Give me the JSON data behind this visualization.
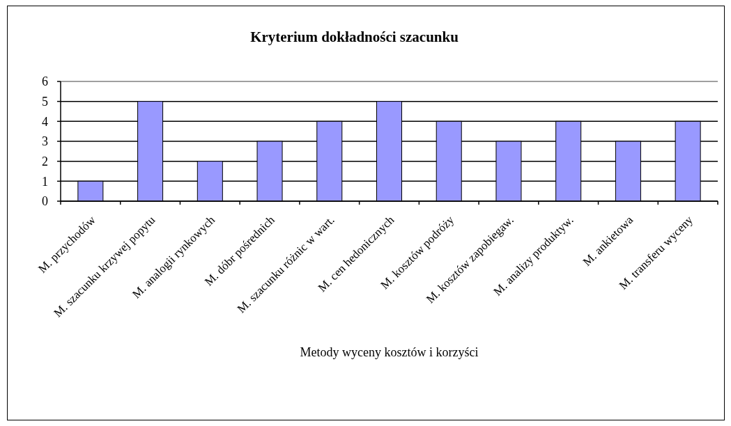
{
  "chart_data": {
    "type": "bar",
    "title": "Kryterium dokładności szacunku",
    "xlabel": "Metody wyceny kosztów i korzyści",
    "categories": [
      "M. przychodów",
      "M. szacunku krzywej popytu",
      "M. analogii rynkowych",
      "M. dóbr pośrednich",
      "M. szacunku różnic w wart.",
      "M. cen hedonicznych",
      "M. kosztów podróży",
      "M. kosztów zapobiegaw.",
      "M. analizy produktyw.",
      "M. ankietowa",
      "M. transferu wyceny"
    ],
    "values": [
      1,
      5,
      2,
      3,
      4,
      5,
      4,
      3,
      4,
      3,
      4
    ],
    "color": "#9999ff",
    "ylim": [
      0,
      6
    ],
    "yticks": [
      0,
      1,
      2,
      3,
      4,
      5,
      6
    ],
    "grid": "y"
  }
}
